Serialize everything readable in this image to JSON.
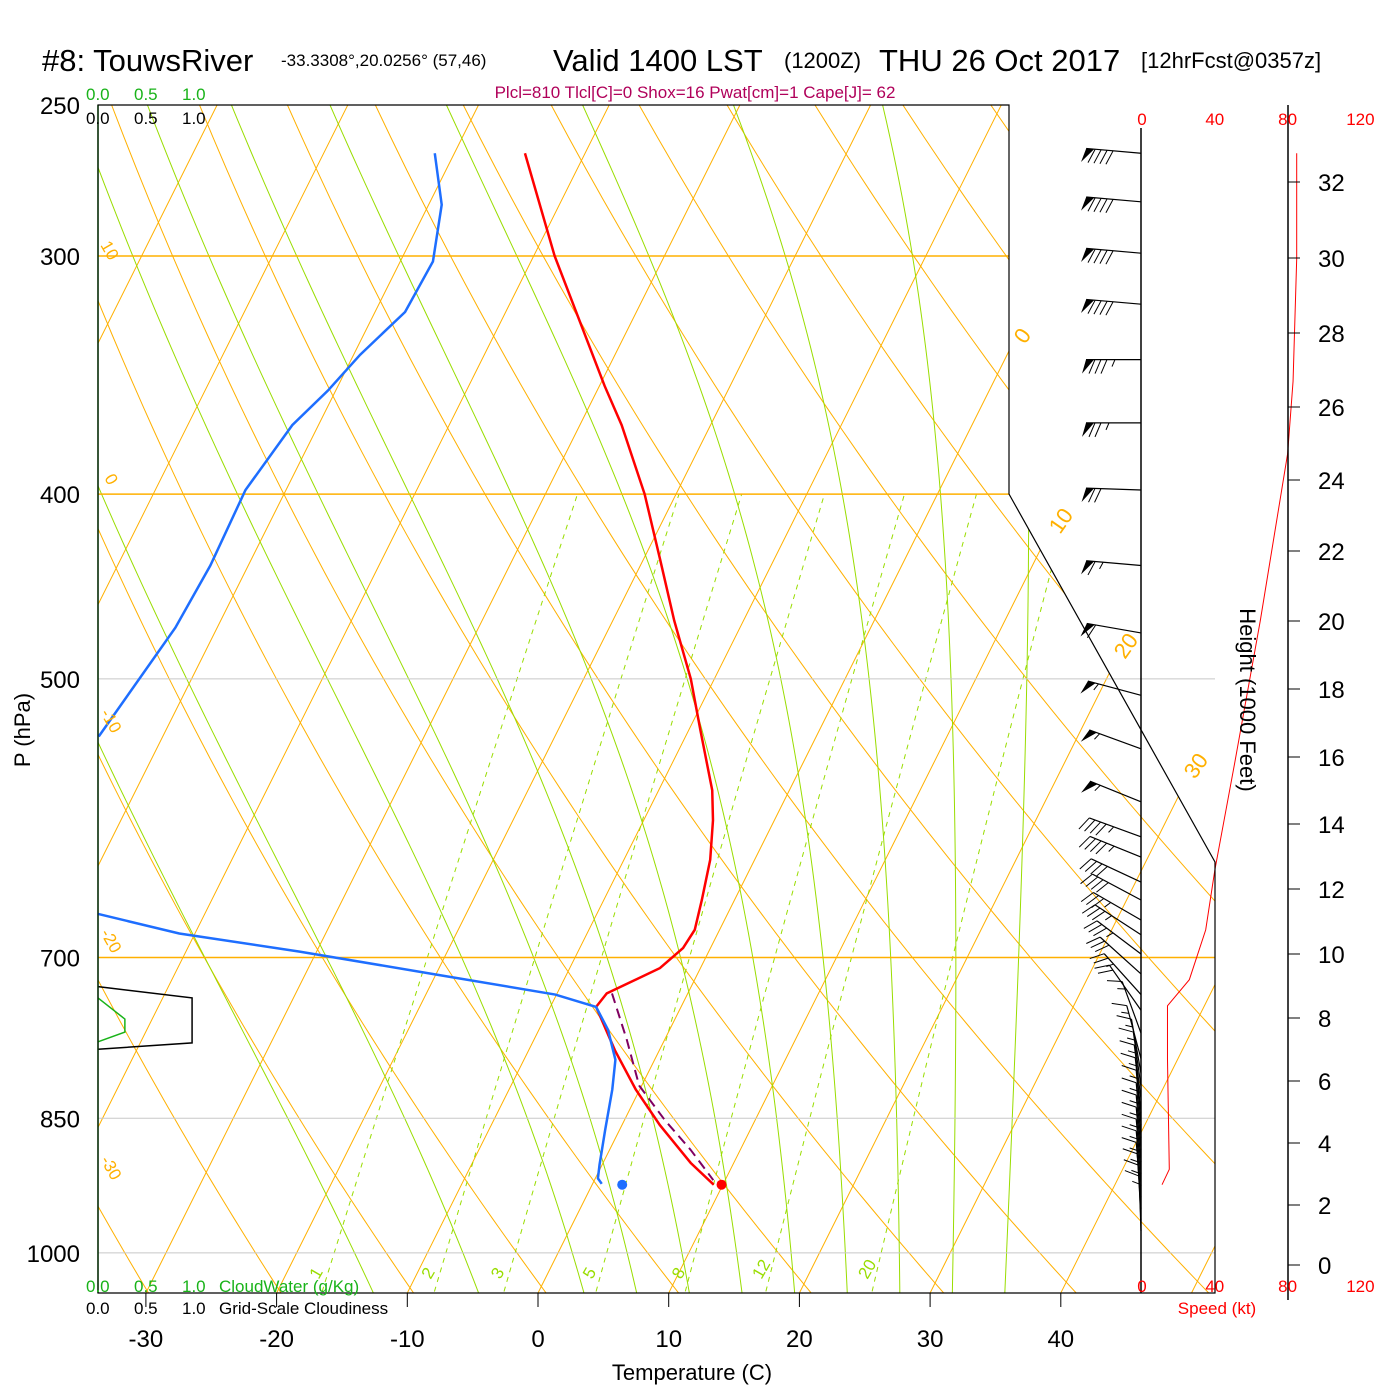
{
  "header": {
    "station": "#8: TouwsRiver",
    "coords": "-33.3308°,20.0256° (57,46)",
    "valid": "Valid 1400 LST",
    "zulu": "(1200Z)",
    "date": "THU 26 Oct 2017",
    "forecast": "[12hrFcst@0357z]",
    "indices": "Plcl=810 Tlcl[C]=0 Shox=16 Pwat[cm]=1 Cape[J]= 62"
  },
  "colors": {
    "temperature": "#ff0000",
    "dewpoint": "#1e6eff",
    "parcel": "#800060",
    "isotherm": "#ffb000",
    "moist": "#99dd00",
    "cloudwater": "#19b319",
    "cloudiness": "#000000",
    "speed": "#ff0000",
    "indices": "#b0005a"
  },
  "chart_data": {
    "type": "skew-t",
    "title": "#8: TouwsRiver Valid 1400 LST (1200Z) THU 26 Oct 2017",
    "xlabel": "Temperature (C)",
    "ylabel": "P (hPa)",
    "y2label": "Height (1000 Feet)",
    "x_ticks": [
      "-30",
      "-20",
      "-10",
      "0",
      "10",
      "20",
      "30",
      "40"
    ],
    "x_tick_values": [
      -30,
      -20,
      -10,
      0,
      10,
      20,
      30,
      40
    ],
    "p_ticks": [
      "250",
      "300",
      "400",
      "500",
      "700",
      "850",
      "1000"
    ],
    "p_tick_values": [
      250,
      300,
      400,
      500,
      700,
      850,
      1000
    ],
    "p_range": [
      250,
      1049
    ],
    "height_ticks": [
      "32",
      "30",
      "28",
      "26",
      "24",
      "22",
      "20",
      "18",
      "16",
      "14",
      "12",
      "10",
      "8",
      "6",
      "4",
      "2",
      "0"
    ],
    "isotherm_labels_right": [
      "0",
      "10",
      "20",
      "30"
    ],
    "adiabat_labels_left": [
      "10",
      "0",
      "-10",
      "-20",
      "-30"
    ],
    "mixing_ratio_labels": [
      "1",
      "2",
      "3",
      "5",
      "8",
      "12",
      "20"
    ],
    "mixing_ratio_values": [
      1,
      2,
      3,
      5,
      8,
      12,
      20
    ],
    "temperature": [
      [
        265,
        -44.6
      ],
      [
        300,
        -38.4
      ],
      [
        351,
        -29.6
      ],
      [
        368,
        -26.8
      ],
      [
        400,
        -22.4
      ],
      [
        433,
        -18.7
      ],
      [
        466,
        -15.3
      ],
      [
        500,
        -11.8
      ],
      [
        532,
        -9.1
      ],
      [
        572,
        -5.9
      ],
      [
        593,
        -4.7
      ],
      [
        622,
        -3.4
      ],
      [
        653,
        -2.5
      ],
      [
        677,
        -1.9
      ],
      [
        692,
        -2.1
      ],
      [
        709,
        -3.1
      ],
      [
        731,
        -6.2
      ],
      [
        743,
        -6.5
      ],
      [
        783,
        -3.4
      ],
      [
        821,
        -0.3
      ],
      [
        857,
        2.9
      ],
      [
        897,
        6.7
      ],
      [
        921,
        9.3
      ]
    ],
    "dewpoint_upper": [
      [
        265,
        -51.5
      ],
      [
        282,
        -49.0
      ],
      [
        302,
        -47.5
      ],
      [
        321,
        -47.7
      ],
      [
        338,
        -49.5
      ],
      [
        353,
        -50.6
      ],
      [
        368,
        -52.0
      ],
      [
        398,
        -53.1
      ],
      [
        436,
        -52.9
      ],
      [
        470,
        -53.2
      ],
      [
        536,
        -54.9
      ]
    ],
    "dewpoint_lower": [
      [
        664,
        -48.2
      ],
      [
        680,
        -41.2
      ],
      [
        695,
        -31.3
      ],
      [
        715,
        -19.7
      ],
      [
        732,
        -10.1
      ],
      [
        743,
        -6.5
      ],
      [
        764,
        -4.7
      ],
      [
        792,
        -3.0
      ],
      [
        821,
        -2.1
      ],
      [
        862,
        -1.1
      ],
      [
        899,
        -0.2
      ],
      [
        914,
        0.2
      ],
      [
        920,
        0.7
      ]
    ],
    "parcel": [
      [
        731,
        -5.8
      ],
      [
        773,
        -2.9
      ],
      [
        817,
        -0.2
      ],
      [
        852,
        3.1
      ],
      [
        883,
        6.2
      ],
      [
        916,
        9.1
      ]
    ],
    "surface": {
      "p": 921,
      "temperature": 9.9,
      "dewpoint": 2.3
    },
    "cloudiness": {
      "axis_label": "Grid-Scale Cloudiness",
      "ticks": [
        "0.0",
        "0.5",
        "1.0"
      ],
      "points": [
        [
          725,
          0.0
        ],
        [
          735,
          0.98
        ],
        [
          776,
          0.98
        ],
        [
          782,
          0.0
        ]
      ]
    },
    "cloudwater": {
      "axis_label": "CloudWater (g/Kg)",
      "ticks": [
        "0.0",
        "0.5",
        "1.0"
      ],
      "points": [
        [
          735,
          0.0
        ],
        [
          754,
          0.28
        ],
        [
          766,
          0.28
        ],
        [
          775,
          0.0
        ]
      ]
    },
    "wind_speed": {
      "axis_label": "Speed (kt)",
      "ticks": [
        "0",
        "40",
        "80",
        "120"
      ],
      "tick_values": [
        0,
        40,
        80,
        120
      ],
      "points": [
        [
          265,
          85
        ],
        [
          301,
          85
        ],
        [
          349,
          83
        ],
        [
          381,
          80
        ],
        [
          466,
          65
        ],
        [
          553,
          51
        ],
        [
          630,
          40
        ],
        [
          677,
          35
        ],
        [
          719,
          26
        ],
        [
          742,
          14
        ],
        [
          791,
          14
        ],
        [
          904,
          15
        ],
        [
          921,
          11
        ]
      ]
    },
    "wind_barbs": [
      {
        "p": 265,
        "speed": 90,
        "dir": 275
      },
      {
        "p": 281,
        "speed": 90,
        "dir": 275
      },
      {
        "p": 299,
        "speed": 90,
        "dir": 275
      },
      {
        "p": 318,
        "speed": 90,
        "dir": 275
      },
      {
        "p": 340,
        "speed": 85,
        "dir": 270
      },
      {
        "p": 367,
        "speed": 75,
        "dir": 270
      },
      {
        "p": 398,
        "speed": 70,
        "dir": 272
      },
      {
        "p": 436,
        "speed": 65,
        "dir": 275
      },
      {
        "p": 473,
        "speed": 60,
        "dir": 280
      },
      {
        "p": 510,
        "speed": 55,
        "dir": 285
      },
      {
        "p": 544,
        "speed": 55,
        "dir": 290
      },
      {
        "p": 580,
        "speed": 55,
        "dir": 292
      },
      {
        "p": 605,
        "speed": 45,
        "dir": 290
      },
      {
        "p": 620,
        "speed": 45,
        "dir": 292
      },
      {
        "p": 639,
        "speed": 40,
        "dir": 295
      },
      {
        "p": 653,
        "speed": 40,
        "dir": 298
      },
      {
        "p": 669,
        "speed": 35,
        "dir": 300
      },
      {
        "p": 681,
        "speed": 35,
        "dir": 303
      },
      {
        "p": 697,
        "speed": 35,
        "dir": 307
      },
      {
        "p": 714,
        "speed": 30,
        "dir": 312
      },
      {
        "p": 732,
        "speed": 25,
        "dir": 318
      },
      {
        "p": 746,
        "speed": 20,
        "dir": 325
      },
      {
        "p": 767,
        "speed": 15,
        "dir": 340
      },
      {
        "p": 791,
        "speed": 15,
        "dir": 345
      },
      {
        "p": 805,
        "speed": 15,
        "dir": 350
      },
      {
        "p": 818,
        "speed": 15,
        "dir": 352
      },
      {
        "p": 831,
        "speed": 15,
        "dir": 353
      },
      {
        "p": 844,
        "speed": 15,
        "dir": 354
      },
      {
        "p": 857,
        "speed": 15,
        "dir": 355
      },
      {
        "p": 870,
        "speed": 15,
        "dir": 355
      },
      {
        "p": 883,
        "speed": 15,
        "dir": 355
      },
      {
        "p": 896,
        "speed": 15,
        "dir": 355
      },
      {
        "p": 909,
        "speed": 15,
        "dir": 355
      },
      {
        "p": 922,
        "speed": 15,
        "dir": 355
      },
      {
        "p": 935,
        "speed": 15,
        "dir": 355
      },
      {
        "p": 948,
        "speed": 15,
        "dir": 356
      },
      {
        "p": 961,
        "speed": 15,
        "dir": 357
      },
      {
        "p": 974,
        "speed": 15,
        "dir": 358
      }
    ]
  }
}
